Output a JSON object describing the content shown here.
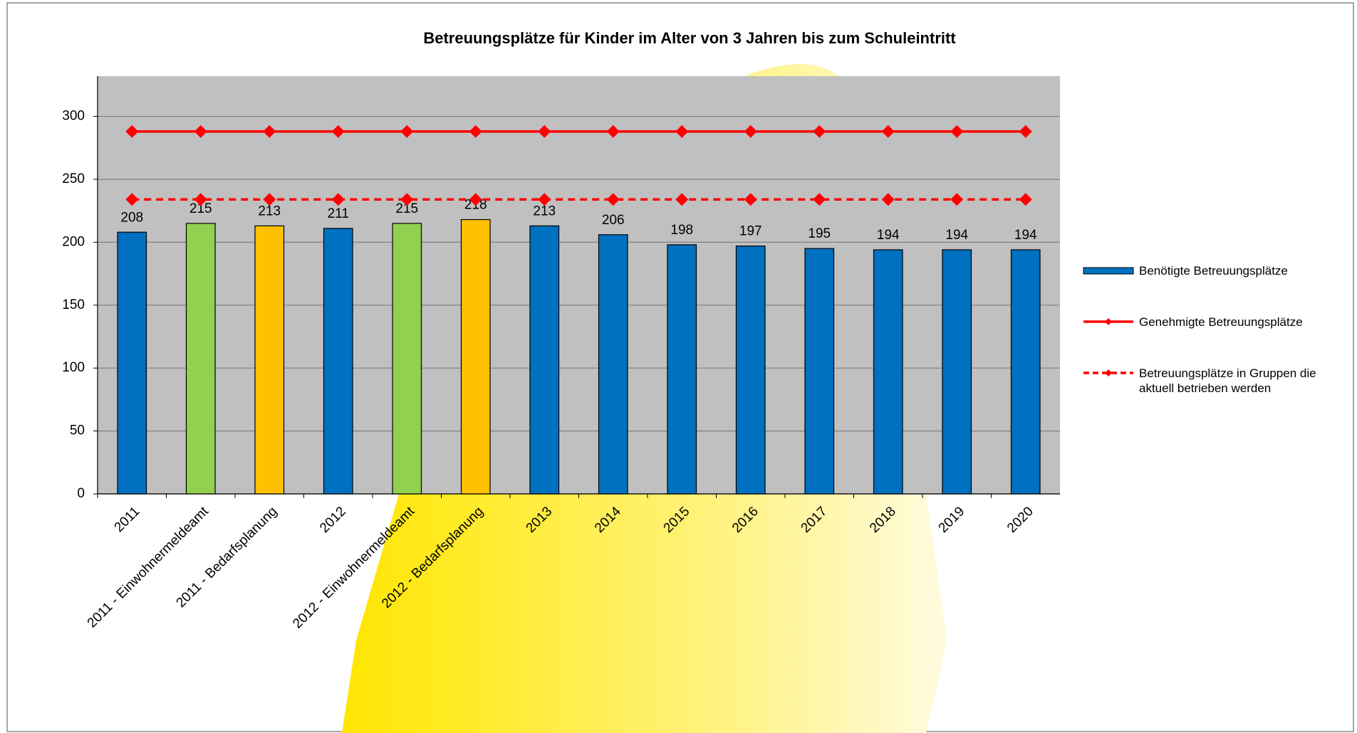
{
  "chart_data": {
    "type": "bar",
    "title": "Betreuungsplätze für Kinder im Alter von 3 Jahren bis zum Schuleintritt",
    "categories": [
      "2011",
      "2011 - Einwohnermeldeamt",
      "2011 - Bedarfsplanung",
      "2012",
      "2012 - Einwohnermeldeamt",
      "2012 - Bedarfsplanung",
      "2013",
      "2014",
      "2015",
      "2016",
      "2017",
      "2018",
      "2019",
      "2020"
    ],
    "series": [
      {
        "name": "Benötigte Betreuungsplätze",
        "type": "bar",
        "color": "#0070c0",
        "colors": [
          "#0070c0",
          "#92d050",
          "#ffc000",
          "#0070c0",
          "#92d050",
          "#ffc000",
          "#0070c0",
          "#0070c0",
          "#0070c0",
          "#0070c0",
          "#0070c0",
          "#0070c0",
          "#0070c0",
          "#0070c0"
        ],
        "values": [
          208,
          215,
          213,
          211,
          215,
          218,
          213,
          206,
          198,
          197,
          195,
          194,
          194,
          194
        ]
      },
      {
        "name": "Genehmigte Betreuungsplätze",
        "type": "line",
        "color": "#ff0000",
        "dashed": false,
        "values": [
          288,
          288,
          288,
          288,
          288,
          288,
          288,
          288,
          288,
          288,
          288,
          288,
          288,
          288
        ]
      },
      {
        "name": "Betreuungsplätze in Gruppen die aktuell betrieben werden",
        "type": "line",
        "color": "#ff0000",
        "dashed": true,
        "values": [
          234,
          234,
          234,
          234,
          234,
          234,
          234,
          234,
          234,
          234,
          234,
          234,
          234,
          234
        ]
      }
    ],
    "ylim": [
      0,
      332
    ],
    "yticks": [
      0,
      50,
      100,
      150,
      200,
      250,
      300
    ],
    "grid": true,
    "legend": "right"
  }
}
